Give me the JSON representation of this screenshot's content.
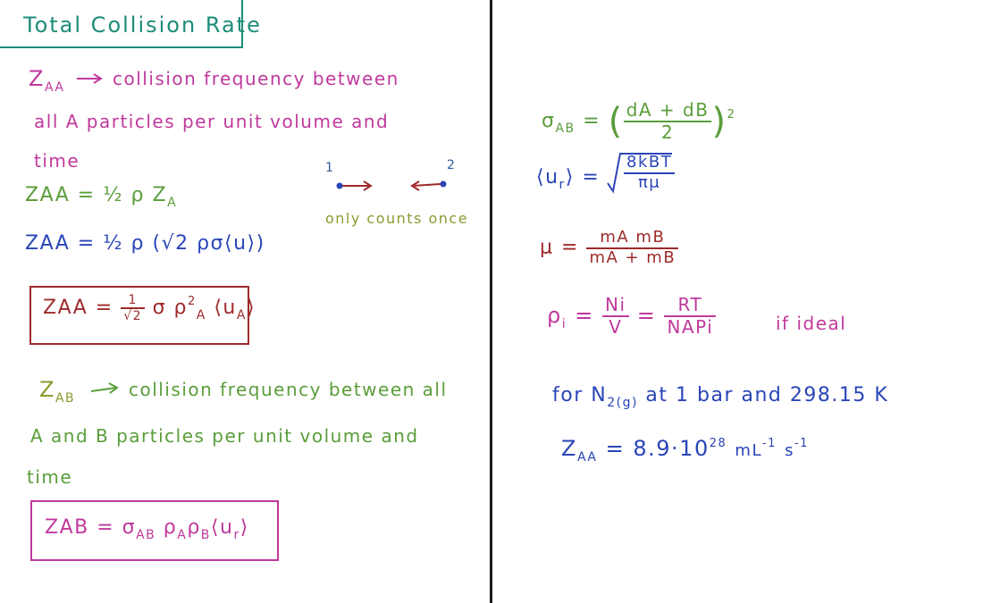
{
  "title": "Total Collision Rate",
  "colors": {
    "teal": "#1e8c78",
    "pink": "#c0399c",
    "green": "#5a9d3a",
    "blue": "#2a45b8",
    "dark_red": "#9e2a2a",
    "steel_blue": "#2e5b9a",
    "olive": "#8c9a2e"
  },
  "left": {
    "zaa_symbol": "Z",
    "zaa_sub": "AA",
    "zaa_desc_1": "collision frequency between",
    "zaa_desc_2": "all A particles per unit volume and",
    "zaa_desc_3": "time",
    "eq1_lhs": "ZAA",
    "eq1_rhs": "= ½ ρ Z",
    "eq1_rhs_sub": "A",
    "eq2_lhs": "ZAA",
    "eq2_rhs": "= ½ ρ (√2 ρσ⟨u⟩)",
    "boxed1_lhs": "ZAA",
    "boxed1_rhs_pre": "=",
    "boxed1_frac_num": "1",
    "boxed1_frac_den": "√2",
    "boxed1_rhs_post": "σ ρ",
    "boxed1_rhs_sup": "2",
    "boxed1_rhs_sub": "A",
    "boxed1_rhs_end": "⟨u",
    "boxed1_rhs_end_sub": "A",
    "boxed1_rhs_close": "⟩",
    "zab_symbol": "Z",
    "zab_sub": "AB",
    "zab_desc_1": "collision frequency between all",
    "zab_desc_2": "A and B particles per unit volume and",
    "zab_desc_3": "time",
    "boxed2_lhs": "ZAB",
    "boxed2_rhs": "= σ",
    "boxed2_sigma_sub": "AB",
    "boxed2_rho_a": "ρ",
    "boxed2_rho_a_sub": "A",
    "boxed2_rho_b": "ρ",
    "boxed2_rho_b_sub": "B",
    "boxed2_u": "⟨u",
    "boxed2_u_sub": "r",
    "boxed2_close": "⟩"
  },
  "diagram": {
    "label_1": "1",
    "label_2": "2",
    "note": "only counts once"
  },
  "right": {
    "sigma_lhs": "σ",
    "sigma_sub": "AB",
    "sigma_eq": "=",
    "sigma_num": "dA + dB",
    "sigma_den": "2",
    "sigma_sup": "2",
    "ur_lhs": "⟨u",
    "ur_sub": "r",
    "ur_close": "⟩ =",
    "ur_num": "8kBT",
    "ur_den": "πμ",
    "mu_lhs": "μ =",
    "mu_num": "mA mB",
    "mu_den": "mA + mB",
    "rho_lhs": "ρ",
    "rho_sub": "i",
    "rho_eq": "=",
    "rho_num": "Ni",
    "rho_den": "V",
    "rho_eq2": "=",
    "rho_num2": "RT",
    "rho_den2": "NAPi",
    "rho_note": "if ideal",
    "n2_text": "for N",
    "n2_sub": "2(g)",
    "n2_text_2": "at 1 bar and 298.15 K",
    "zaa_val_lhs": "Z",
    "zaa_val_sub": "AA",
    "zaa_val_rhs": "= 8.9·10",
    "zaa_val_sup": "28",
    "zaa_val_units": "mL",
    "zaa_val_units_sup": "-1",
    "zaa_val_units_2": "s",
    "zaa_val_units_2_sup": "-1"
  }
}
